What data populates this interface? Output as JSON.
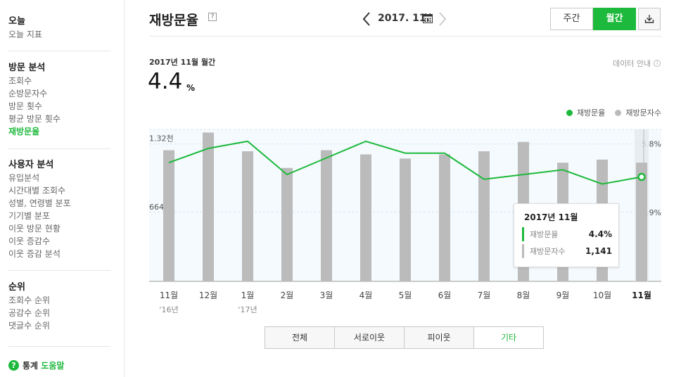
{
  "sidebar": {
    "sections": [
      {
        "title": "오늘",
        "items": [
          "오늘 지표"
        ]
      },
      {
        "title": "방문 분석",
        "items": [
          "조회수",
          "순방문자수",
          "방문 횟수",
          "평균 방문 횟수",
          "재방문율"
        ]
      },
      {
        "title": "사용자 분석",
        "items": [
          "유입분석",
          "시간대별 조회수",
          "성별, 연령별 분포",
          "기기별 분포",
          "이웃 방문 현황",
          "이웃 증감수",
          "이웃 증감 분석"
        ]
      },
      {
        "title": "순위",
        "items": [
          "조회수 순위",
          "공감수 순위",
          "댓글수 순위"
        ]
      }
    ],
    "active_item": "재방문율",
    "help": {
      "prefix": "통계",
      "link": "도움말"
    }
  },
  "header": {
    "title": "재방문율",
    "help_mark": "?",
    "period": "2017. 11.",
    "view_toggle": [
      "주간",
      "월간"
    ],
    "active_view": "월간",
    "download_icon": "download-icon"
  },
  "summary": {
    "period_label": "2017년 11월 월간",
    "value": "4.4",
    "unit": "%",
    "data_guide": "데이터 안내"
  },
  "legend": [
    {
      "label": "재방문율",
      "color": "#1db93c"
    },
    {
      "label": "재방문자수",
      "color": "#bbbbbb"
    }
  ],
  "chart_data": {
    "type": "bar",
    "categories": [
      "11월 '16년",
      "12월",
      "1월 '17년",
      "2월",
      "3월",
      "4월",
      "5월",
      "6월",
      "7월",
      "8월",
      "9월",
      "10월",
      "11월"
    ],
    "x_labels": [
      "11월",
      "12월",
      "1월",
      "2월",
      "3월",
      "4월",
      "5월",
      "6월",
      "7월",
      "8월",
      "9월",
      "10월",
      "11월"
    ],
    "x_sublabels": [
      "'16년",
      "",
      "'17년",
      "",
      "",
      "",
      "",
      "",
      "",
      "",
      "",
      "",
      ""
    ],
    "series": [
      {
        "name": "재방문자수",
        "type": "bar",
        "axis": "left",
        "values": [
          1260,
          1430,
          1250,
          1090,
          1260,
          1220,
          1180,
          1220,
          1250,
          1340,
          1140,
          1170,
          1141
        ]
      },
      {
        "name": "재방문율",
        "type": "line",
        "axis": "right",
        "values": [
          5.0,
          5.6,
          5.9,
          4.5,
          5.2,
          5.9,
          5.4,
          5.4,
          4.3,
          4.5,
          4.7,
          4.1,
          4.4
        ]
      }
    ],
    "left_axis": {
      "ticks": [
        "1.32천",
        "664"
      ],
      "tick_values": [
        1320,
        664
      ],
      "range": [
        0,
        1460
      ]
    },
    "right_axis": {
      "ticks": [
        "5.8%",
        "2.9%"
      ],
      "tick_values": [
        5.8,
        2.9
      ],
      "range": [
        0,
        6.4
      ]
    },
    "highlight_index": 12,
    "tooltip": {
      "title": "2017년 11월",
      "rows": [
        {
          "label": "재방문율",
          "value": "4.4%",
          "color": "#1db93c"
        },
        {
          "label": "재방문자수",
          "value": "1,141",
          "color": "#bbbbbb"
        }
      ]
    },
    "colors": {
      "line": "#1db93c",
      "bar": "#bbbbbb",
      "plot_bg": "#f4fafd",
      "grid": "#d8e6ee"
    }
  },
  "filter_tabs": [
    "전체",
    "서로이웃",
    "피이웃",
    "기타"
  ],
  "active_filter": "기타"
}
